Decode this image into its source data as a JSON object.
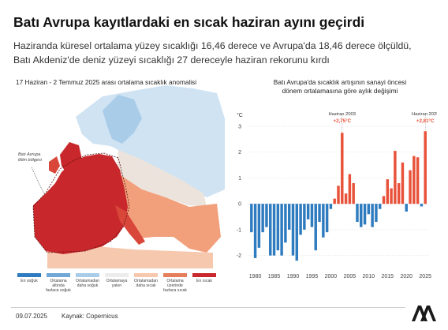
{
  "header": {
    "title": "Batı Avrupa kayıtlardaki en sıcak haziran ayını geçirdi",
    "subtitle_line1": "Haziranda küresel ortalama yüzey sıcaklığı 16,46 derece ve Avrupa'da 18,46 derece ölçüldü,",
    "subtitle_line2": "Batı Akdeniz'de deniz yüzeyi sıcaklığı 27 dereceyle haziran rekorunu kırdı"
  },
  "map": {
    "title": "17 Haziran - 2 Temmuz 2025 arası ortalama sıcaklık anomalisi",
    "annotation_line1": "Batı Avrupa",
    "annotation_line2": "iklim bölgesi",
    "colors": {
      "sea": "#ffffff",
      "cold_land": "#cfe3f3",
      "neutral": "#e9e4df",
      "warm": "#f2a07c",
      "hot": "#c8282c"
    }
  },
  "legend": {
    "items": [
      {
        "label_lines": [
          "En soğuk"
        ],
        "color": "#2f7bbf"
      },
      {
        "label_lines": [
          "Ortalama",
          "altında",
          "fazlaca soğuk"
        ],
        "color": "#6fa7d6"
      },
      {
        "label_lines": [
          "Ortalamadan",
          "daha soğuk"
        ],
        "color": "#a9cce9"
      },
      {
        "label_lines": [
          "Ortalamaya",
          "yakın"
        ],
        "color": "#ececec"
      },
      {
        "label_lines": [
          "Ortalamadan",
          "daha sıcak"
        ],
        "color": "#f6c8ae"
      },
      {
        "label_lines": [
          "Ortalama",
          "üzerinde",
          "fazlaca sıcak"
        ],
        "color": "#e57e5b"
      },
      {
        "label_lines": [
          "En sıcak"
        ],
        "color": "#c8282c"
      }
    ]
  },
  "chart_data": {
    "type": "bar",
    "title_line1": "Batı Avrupa'da sıcaklık artışının sanayi öncesi",
    "title_line2": "dönem ortalamasına göre aylık değişimi",
    "ylabel": "°C",
    "ylim": [
      -2.5,
      3
    ],
    "yticks": [
      -2,
      -1,
      0,
      1,
      2,
      3
    ],
    "xticks": [
      1980,
      1985,
      1990,
      1995,
      2000,
      2005,
      2010,
      2015,
      2020,
      2025
    ],
    "x_range": [
      1978,
      2026
    ],
    "colors": {
      "positive": "#e8523a",
      "negative": "#2f7bbf"
    },
    "x": [
      1979,
      1980,
      1981,
      1982,
      1983,
      1984,
      1985,
      1986,
      1987,
      1988,
      1989,
      1990,
      1991,
      1992,
      1993,
      1994,
      1995,
      1996,
      1997,
      1998,
      1999,
      2000,
      2001,
      2002,
      2003,
      2004,
      2005,
      2006,
      2007,
      2008,
      2009,
      2010,
      2011,
      2012,
      2013,
      2014,
      2015,
      2016,
      2017,
      2018,
      2019,
      2020,
      2021,
      2022,
      2023,
      2024,
      2025
    ],
    "values": [
      -1.1,
      -2.1,
      -1.7,
      -1.1,
      -0.9,
      -2.0,
      -2.0,
      -1.8,
      -2.0,
      -1.5,
      -1.0,
      -2.0,
      -2.2,
      -1.2,
      -1.0,
      -0.6,
      -0.9,
      -1.8,
      -0.7,
      -1.3,
      -1.1,
      -0.2,
      0.2,
      0.7,
      2.75,
      0.4,
      1.15,
      0.8,
      -0.7,
      -0.9,
      -0.8,
      -0.4,
      -0.9,
      -0.7,
      -0.2,
      0.3,
      0.95,
      0.6,
      2.05,
      0.8,
      1.6,
      -0.3,
      1.3,
      1.85,
      1.8,
      -0.1,
      2.81
    ],
    "annotations": [
      {
        "x": 2003,
        "label": "Haziran 2003",
        "value_text": "+2,75°C"
      },
      {
        "x": 2025,
        "label": "Haziran 2025",
        "value_text": "+2,81°C"
      }
    ]
  },
  "footer": {
    "date": "09.07.2025",
    "source": "Kaynak: Copernicus",
    "logo_text": "AA"
  }
}
